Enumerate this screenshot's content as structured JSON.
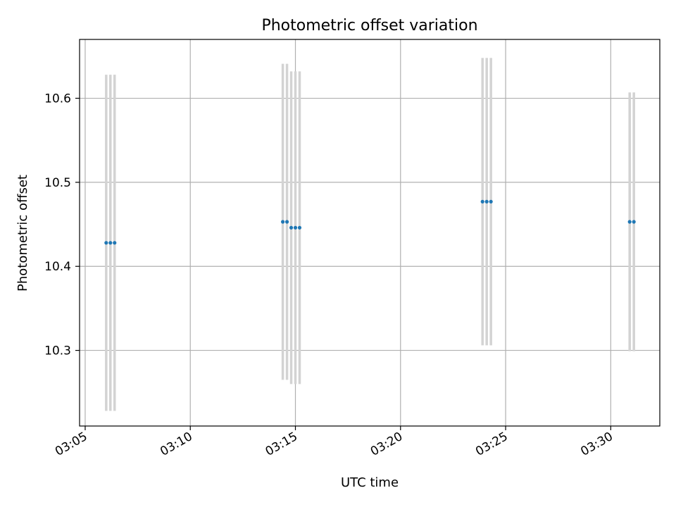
{
  "chart_data": {
    "type": "scatter",
    "title": "Photometric offset variation",
    "xlabel": "UTC time",
    "ylabel": "Photometric offset",
    "x_axis": {
      "ticks": [
        "03:05",
        "03:10",
        "03:15",
        "03:20",
        "03:25",
        "03:30"
      ],
      "range": [
        "03:04:44",
        "03:32:20"
      ]
    },
    "y_axis": {
      "ticks": [
        "10.3",
        "10.4",
        "10.5",
        "10.6"
      ],
      "range": [
        10.21,
        10.67
      ]
    },
    "grid": true,
    "colors": {
      "point": "#1f77b4",
      "errorbar": "#d3d3d3",
      "grid": "#b0b0b0"
    },
    "points": [
      {
        "time": "03:06:00",
        "y": 10.428,
        "err": 0.2
      },
      {
        "time": "03:06:12",
        "y": 10.428,
        "err": 0.2
      },
      {
        "time": "03:06:24",
        "y": 10.428,
        "err": 0.2
      },
      {
        "time": "03:14:24",
        "y": 10.453,
        "err": 0.188
      },
      {
        "time": "03:14:36",
        "y": 10.453,
        "err": 0.188
      },
      {
        "time": "03:14:48",
        "y": 10.446,
        "err": 0.186
      },
      {
        "time": "03:15:00",
        "y": 10.446,
        "err": 0.186
      },
      {
        "time": "03:15:12",
        "y": 10.446,
        "err": 0.186
      },
      {
        "time": "03:23:54",
        "y": 10.477,
        "err": 0.171
      },
      {
        "time": "03:24:06",
        "y": 10.477,
        "err": 0.171
      },
      {
        "time": "03:24:18",
        "y": 10.477,
        "err": 0.171
      },
      {
        "time": "03:30:54",
        "y": 10.453,
        "err": 0.154
      },
      {
        "time": "03:31:06",
        "y": 10.453,
        "err": 0.154
      }
    ]
  }
}
